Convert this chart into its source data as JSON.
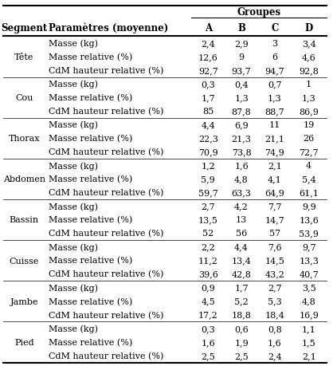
{
  "title_header": "Groupes",
  "col_headers": [
    "Segment",
    "Paramètres (moyenne)",
    "A",
    "B",
    "C",
    "D"
  ],
  "segments": [
    {
      "name": "Tête",
      "rows": [
        [
          "Masse (kg)",
          "2,4",
          "2,9",
          "3",
          "3,4"
        ],
        [
          "Masse relative (%)",
          "12,6",
          "9",
          "6",
          "4,6"
        ],
        [
          "CdM hauteur relative (%)",
          "92,7",
          "93,7",
          "94,7",
          "92,8"
        ]
      ]
    },
    {
      "name": "Cou",
      "rows": [
        [
          "Masse (kg)",
          "0,3",
          "0,4",
          "0,7",
          "1"
        ],
        [
          "Masse relative (%)",
          "1,7",
          "1,3",
          "1,3",
          "1,3"
        ],
        [
          "CdM hauteur relative (%)",
          "85",
          "87,8",
          "88,7",
          "86,9"
        ]
      ]
    },
    {
      "name": "Thorax",
      "rows": [
        [
          "Masse (kg)",
          "4,4",
          "6,9",
          "11",
          "19"
        ],
        [
          "Masse relative (%)",
          "22,3",
          "21,3",
          "21,1",
          "26"
        ],
        [
          "CdM hauteur relative (%)",
          "70,9",
          "73,8",
          "74,9",
          "72,7"
        ]
      ]
    },
    {
      "name": "Abdomen",
      "rows": [
        [
          "Masse (kg)",
          "1,2",
          "1,6",
          "2,1",
          "4"
        ],
        [
          "Masse relative (%)",
          "5,9",
          "4,8",
          "4,1",
          "5,4"
        ],
        [
          "CdM hauteur relative (%)",
          "59,7",
          "63,3",
          "64,9",
          "61,1"
        ]
      ]
    },
    {
      "name": "Bassin",
      "rows": [
        [
          "Masse (kg)",
          "2,7",
          "4,2",
          "7,7",
          "9,9"
        ],
        [
          "Masse relative (%)",
          "13,5",
          "13",
          "14,7",
          "13,6"
        ],
        [
          "CdM hauteur relative (%)",
          "52",
          "56",
          "57",
          "53,9"
        ]
      ]
    },
    {
      "name": "Cuisse",
      "rows": [
        [
          "Masse (kg)",
          "2,2",
          "4,4",
          "7,6",
          "9,7"
        ],
        [
          "Masse relative (%)",
          "11,2",
          "13,4",
          "14,5",
          "13,3"
        ],
        [
          "CdM hauteur relative (%)",
          "39,6",
          "42,8",
          "43,2",
          "40,7"
        ]
      ]
    },
    {
      "name": "Jambe",
      "rows": [
        [
          "Masse (kg)",
          "0,9",
          "1,7",
          "2,7",
          "3,5"
        ],
        [
          "Masse relative (%)",
          "4,5",
          "5,2",
          "5,3",
          "4,8"
        ],
        [
          "CdM hauteur relative (%)",
          "17,2",
          "18,8",
          "18,4",
          "16,9"
        ]
      ]
    },
    {
      "name": "Pied",
      "rows": [
        [
          "Masse (kg)",
          "0,3",
          "0,6",
          "0,8",
          "1,1"
        ],
        [
          "Masse relative (%)",
          "1,6",
          "1,9",
          "1,6",
          "1,5"
        ],
        [
          "CdM hauteur relative (%)",
          "2,5",
          "2,5",
          "2,4",
          "2,1"
        ]
      ]
    }
  ],
  "figsize": [
    4.18,
    4.59
  ],
  "dpi": 100,
  "header_fontsize": 8.5,
  "cell_fontsize": 8.0,
  "segment_fontsize": 8.0,
  "text_color": "#000000",
  "bg_color": "#ffffff",
  "thick_line": 1.5,
  "thin_line": 0.5,
  "groupes_line": 0.8
}
